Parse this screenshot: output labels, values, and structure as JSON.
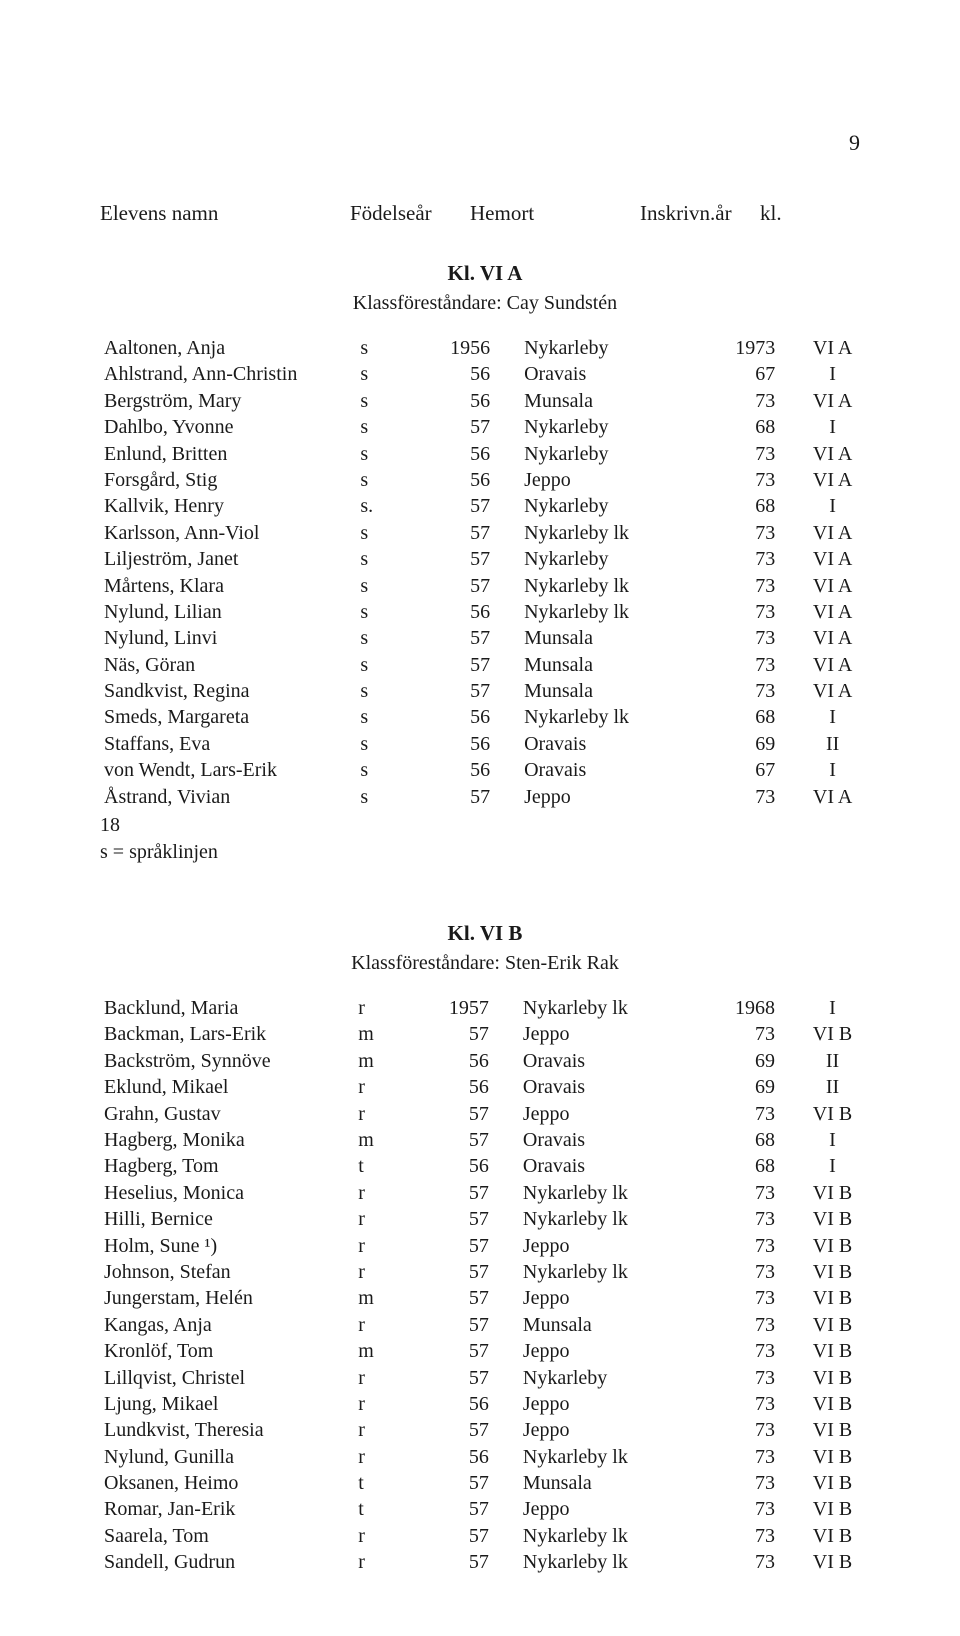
{
  "page_number": "9",
  "headers": {
    "name": "Elevens namn",
    "birth_year": "Födelseår",
    "home": "Hemort",
    "enroll_year": "Inskrivn.år",
    "kl": "kl."
  },
  "section_a": {
    "title": "Kl. VI A",
    "teacher_label": "Klassföreståndare:",
    "teacher_name": "Cay Sundstén",
    "rows": [
      {
        "name": "Aaltonen, Anja",
        "track": "s",
        "year": "1956",
        "home": "Nykarleby",
        "enroll": "1973",
        "kl": "VI A"
      },
      {
        "name": "Ahlstrand, Ann-Christin",
        "track": "s",
        "year": "56",
        "home": "Oravais",
        "enroll": "67",
        "kl": "I"
      },
      {
        "name": "Bergström, Mary",
        "track": "s",
        "year": "56",
        "home": "Munsala",
        "enroll": "73",
        "kl": "VI A"
      },
      {
        "name": "Dahlbo, Yvonne",
        "track": "s",
        "year": "57",
        "home": "Nykarleby",
        "enroll": "68",
        "kl": "I"
      },
      {
        "name": "Enlund, Britten",
        "track": "s",
        "year": "56",
        "home": "Nykarleby",
        "enroll": "73",
        "kl": "VI A"
      },
      {
        "name": "Forsgård, Stig",
        "track": "s",
        "year": "56",
        "home": "Jeppo",
        "enroll": "73",
        "kl": "VI A"
      },
      {
        "name": "Kallvik, Henry",
        "track": "s.",
        "year": "57",
        "home": "Nykarleby",
        "enroll": "68",
        "kl": "I"
      },
      {
        "name": "Karlsson, Ann-Viol",
        "track": "s",
        "year": "57",
        "home": "Nykarleby lk",
        "enroll": "73",
        "kl": "VI A"
      },
      {
        "name": "Liljeström, Janet",
        "track": "s",
        "year": "57",
        "home": "Nykarleby",
        "enroll": "73",
        "kl": "VI A"
      },
      {
        "name": "Mårtens, Klara",
        "track": "s",
        "year": "57",
        "home": "Nykarleby lk",
        "enroll": "73",
        "kl": "VI A"
      },
      {
        "name": "Nylund, Lilian",
        "track": "s",
        "year": "56",
        "home": "Nykarleby lk",
        "enroll": "73",
        "kl": "VI A"
      },
      {
        "name": "Nylund, Linvi",
        "track": "s",
        "year": "57",
        "home": "Munsala",
        "enroll": "73",
        "kl": "VI A"
      },
      {
        "name": "Näs, Göran",
        "track": "s",
        "year": "57",
        "home": "Munsala",
        "enroll": "73",
        "kl": "VI A"
      },
      {
        "name": "Sandkvist, Regina",
        "track": "s",
        "year": "57",
        "home": "Munsala",
        "enroll": "73",
        "kl": "VI A"
      },
      {
        "name": "Smeds, Margareta",
        "track": "s",
        "year": "56",
        "home": "Nykarleby lk",
        "enroll": "68",
        "kl": "I"
      },
      {
        "name": "Staffans, Eva",
        "track": "s",
        "year": "56",
        "home": "Oravais",
        "enroll": "69",
        "kl": "II"
      },
      {
        "name": "von Wendt, Lars-Erik",
        "track": "s",
        "year": "56",
        "home": "Oravais",
        "enroll": "67",
        "kl": "I"
      },
      {
        "name": "Åstrand, Vivian",
        "track": "s",
        "year": "57",
        "home": "Jeppo",
        "enroll": "73",
        "kl": "VI A"
      }
    ],
    "footnotes": [
      "18",
      "s = språklinjen"
    ]
  },
  "section_b": {
    "title": "Kl. VI B",
    "teacher_label": "Klassföreståndare:",
    "teacher_name": "Sten-Erik Rak",
    "rows": [
      {
        "name": "Backlund, Maria",
        "track": "r",
        "year": "1957",
        "home": "Nykarleby lk",
        "enroll": "1968",
        "kl": "I"
      },
      {
        "name": "Backman, Lars-Erik",
        "track": "m",
        "year": "57",
        "home": "Jeppo",
        "enroll": "73",
        "kl": "VI B"
      },
      {
        "name": "Backström, Synnöve",
        "track": "m",
        "year": "56",
        "home": "Oravais",
        "enroll": "69",
        "kl": "II"
      },
      {
        "name": "Eklund, Mikael",
        "track": "r",
        "year": "56",
        "home": "Oravais",
        "enroll": "69",
        "kl": "II"
      },
      {
        "name": "Grahn, Gustav",
        "track": "r",
        "year": "57",
        "home": "Jeppo",
        "enroll": "73",
        "kl": "VI B"
      },
      {
        "name": "Hagberg, Monika",
        "track": "m",
        "year": "57",
        "home": "Oravais",
        "enroll": "68",
        "kl": "I"
      },
      {
        "name": "Hagberg, Tom",
        "track": "t",
        "year": "56",
        "home": "Oravais",
        "enroll": "68",
        "kl": "I"
      },
      {
        "name": "Heselius, Monica",
        "track": "r",
        "year": "57",
        "home": "Nykarleby lk",
        "enroll": "73",
        "kl": "VI B"
      },
      {
        "name": "Hilli, Bernice",
        "track": "r",
        "year": "57",
        "home": "Nykarleby lk",
        "enroll": "73",
        "kl": "VI B"
      },
      {
        "name": "Holm, Sune ¹)",
        "track": "r",
        "year": "57",
        "home": "Jeppo",
        "enroll": "73",
        "kl": "VI B"
      },
      {
        "name": "Johnson, Stefan",
        "track": "r",
        "year": "57",
        "home": "Nykarleby lk",
        "enroll": "73",
        "kl": "VI B"
      },
      {
        "name": "Jungerstam, Helén",
        "track": "m",
        "year": "57",
        "home": "Jeppo",
        "enroll": "73",
        "kl": "VI B"
      },
      {
        "name": "Kangas, Anja",
        "track": "r",
        "year": "57",
        "home": "Munsala",
        "enroll": "73",
        "kl": "VI B"
      },
      {
        "name": "Kronlöf, Tom",
        "track": "m",
        "year": "57",
        "home": "Jeppo",
        "enroll": "73",
        "kl": "VI B"
      },
      {
        "name": "Lillqvist, Christel",
        "track": "r",
        "year": "57",
        "home": "Nykarleby",
        "enroll": "73",
        "kl": "VI B"
      },
      {
        "name": "Ljung, Mikael",
        "track": "r",
        "year": "56",
        "home": "Jeppo",
        "enroll": "73",
        "kl": "VI B"
      },
      {
        "name": "Lundkvist, Theresia",
        "track": "r",
        "year": "57",
        "home": "Jeppo",
        "enroll": "73",
        "kl": "VI B"
      },
      {
        "name": "Nylund, Gunilla",
        "track": "r",
        "year": "56",
        "home": "Nykarleby lk",
        "enroll": "73",
        "kl": "VI B"
      },
      {
        "name": "Oksanen, Heimo",
        "track": "t",
        "year": "57",
        "home": "Munsala",
        "enroll": "73",
        "kl": "VI B"
      },
      {
        "name": "Romar, Jan-Erik",
        "track": "t",
        "year": "57",
        "home": "Jeppo",
        "enroll": "73",
        "kl": "VI B"
      },
      {
        "name": "Saarela, Tom",
        "track": "r",
        "year": "57",
        "home": "Nykarleby lk",
        "enroll": "73",
        "kl": "VI B"
      },
      {
        "name": "Sandell, Gudrun",
        "track": "r",
        "year": "57",
        "home": "Nykarleby lk",
        "enroll": "73",
        "kl": "VI B"
      }
    ]
  }
}
